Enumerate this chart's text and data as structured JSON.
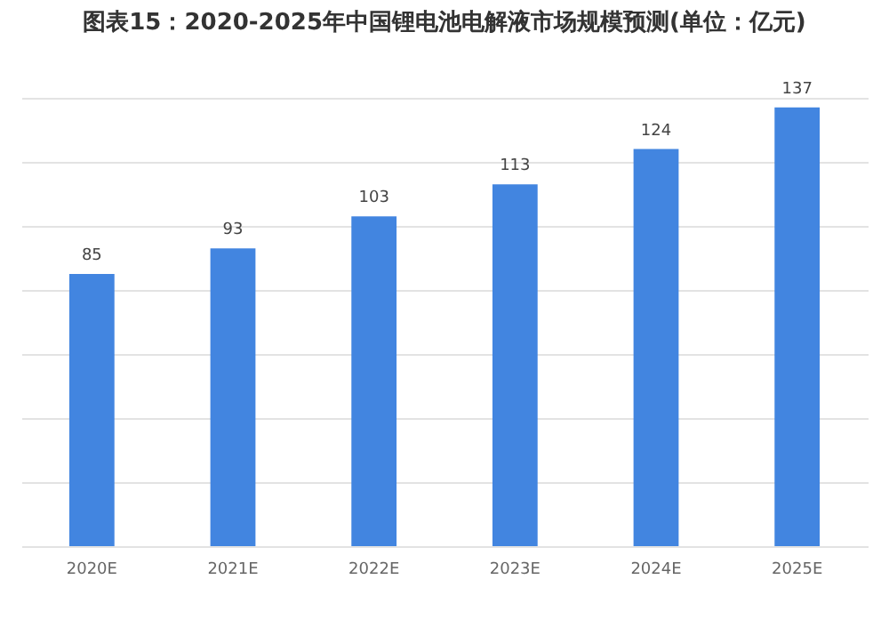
{
  "chart_data": {
    "type": "bar",
    "title": "图表15：2020-2025年中国锂电池电解液市场规模预测(单位：亿元)",
    "categories": [
      "2020E",
      "2021E",
      "2022E",
      "2023E",
      "2024E",
      "2025E"
    ],
    "values": [
      85,
      93,
      103,
      113,
      124,
      137
    ],
    "color": "#4285e0",
    "grid": "y",
    "tick_labels": "x",
    "data_labels": true
  }
}
